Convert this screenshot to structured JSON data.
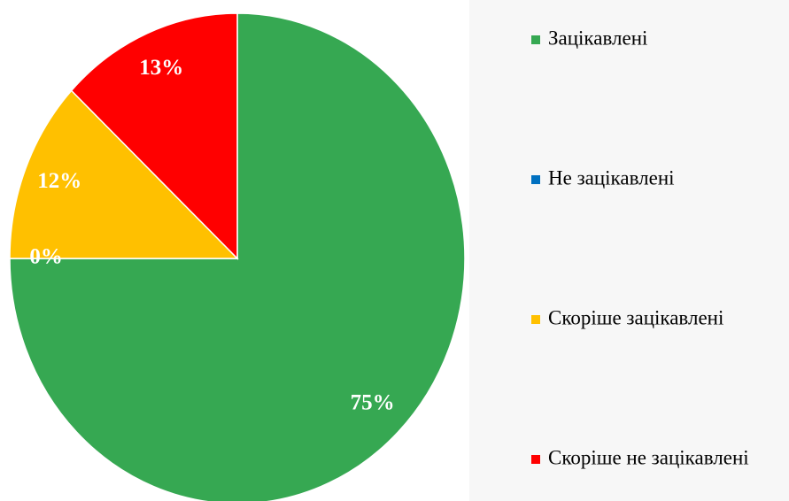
{
  "chart_data": {
    "type": "pie",
    "categories": [
      "Зацікавлені",
      "Не зацікавлені",
      "Скоріше зацікавлені",
      "Скоріше не зацікавлені"
    ],
    "values": [
      75,
      0,
      12,
      13
    ],
    "value_labels": [
      "75%",
      "0%",
      "12%",
      "13%"
    ],
    "colors": [
      "#36a852",
      "#0070c0",
      "#ffc000",
      "#ff0000"
    ],
    "legend": "right"
  }
}
